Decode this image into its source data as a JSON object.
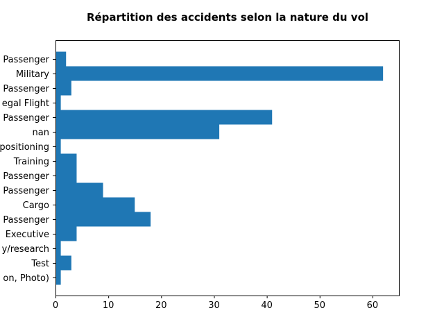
{
  "chart_data": {
    "type": "bar",
    "orientation": "horizontal",
    "title": "Répartition des accidents selon la nature du vol",
    "xlabel": "",
    "ylabel": "",
    "xlim": [
      0,
      65
    ],
    "xticks": [
      0,
      10,
      20,
      30,
      40,
      50,
      60
    ],
    "categories": [
      "Passenger",
      "Military",
      "Passenger",
      "egal Flight",
      "Passenger",
      "nan",
      "positioning",
      "Training",
      "Passenger",
      "Passenger",
      "Cargo",
      "Passenger",
      "Executive",
      "y/research",
      "Test",
      "on, Photo)"
    ],
    "values": [
      2,
      62,
      3,
      1,
      41,
      31,
      1,
      4,
      4,
      9,
      15,
      18,
      4,
      1,
      3,
      1
    ],
    "colors": {
      "bar": "#1f77b4"
    },
    "grid": false
  }
}
